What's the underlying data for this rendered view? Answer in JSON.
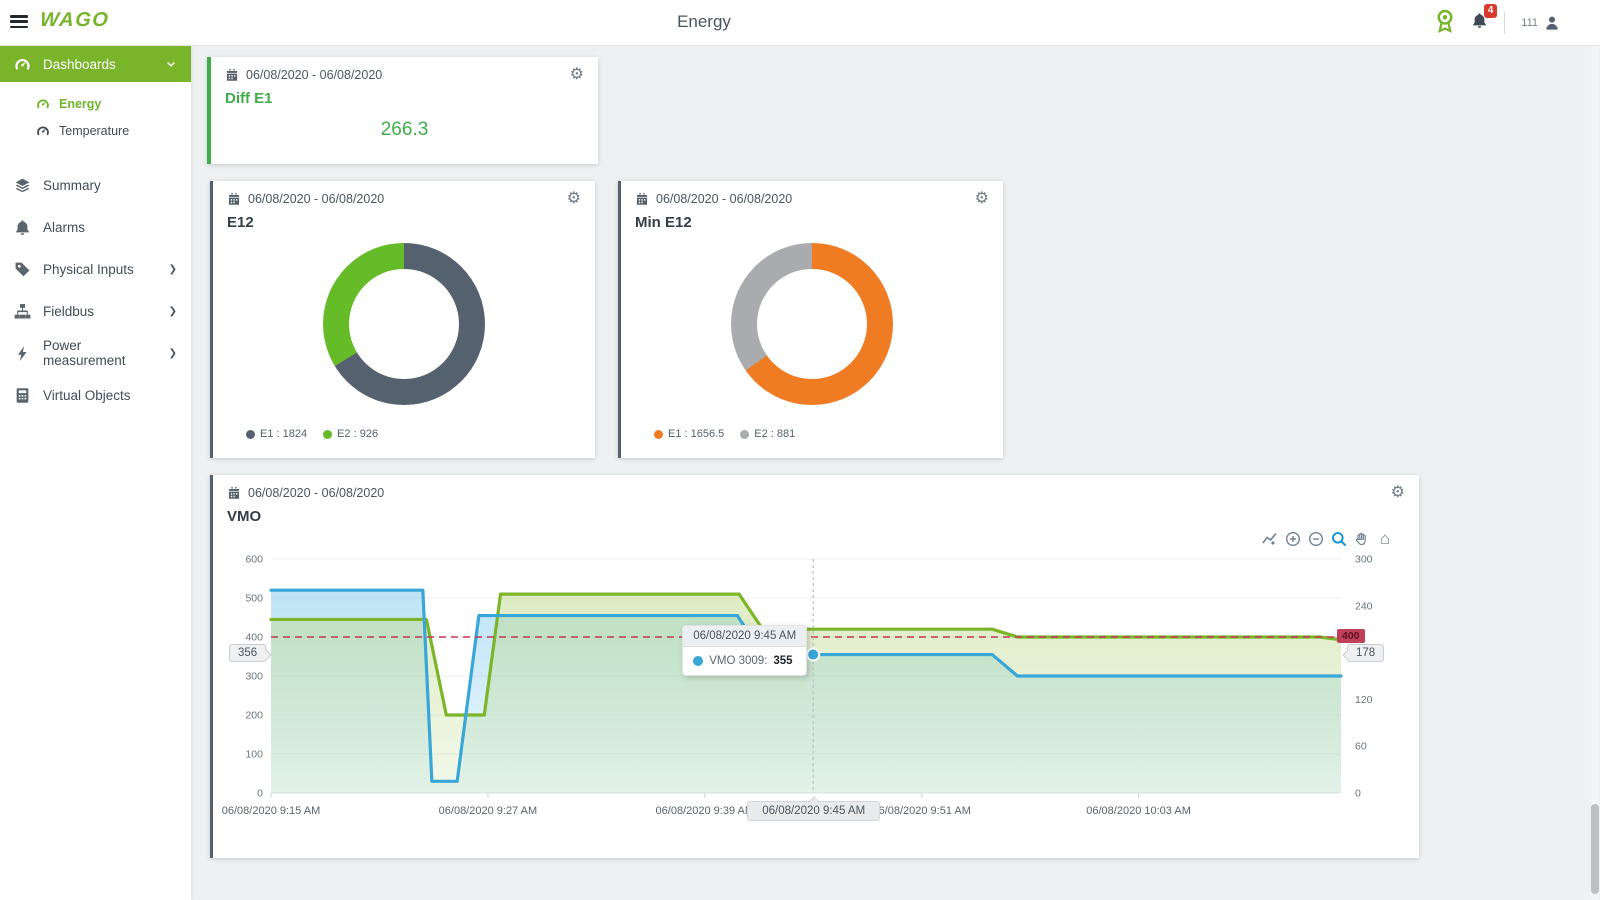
{
  "topbar": {
    "logo": "WAGO",
    "title": "Energy",
    "notification_count": "4",
    "user_id": "111"
  },
  "sidebar": {
    "items": [
      {
        "label": "Dashboards",
        "icon": "gauge",
        "active": true,
        "has_submenu": true
      },
      {
        "label": "Energy",
        "icon": "gauge",
        "sub": true,
        "selected": true
      },
      {
        "label": "Temperature",
        "icon": "gauge",
        "sub": true
      },
      {
        "label": "Summary",
        "icon": "layers"
      },
      {
        "label": "Alarms",
        "icon": "bell"
      },
      {
        "label": "Physical Inputs",
        "icon": "tag",
        "has_submenu": true
      },
      {
        "label": "Fieldbus",
        "icon": "sitemap",
        "has_submenu": true
      },
      {
        "label": "Power measurement",
        "icon": "bolt",
        "has_submenu": true
      },
      {
        "label": "Virtual Objects",
        "icon": "calculator"
      }
    ]
  },
  "cards": {
    "diff": {
      "date_range": "06/08/2020 - 06/08/2020",
      "title": "Diff E1",
      "value": "266.3"
    },
    "e12": {
      "date_range": "06/08/2020 - 06/08/2020",
      "title": "E12"
    },
    "min_e12": {
      "date_range": "06/08/2020 - 06/08/2020",
      "title": "Min E12"
    },
    "vmo": {
      "date_range": "06/08/2020 - 06/08/2020",
      "title": "VMO"
    }
  },
  "chart_data": [
    {
      "type": "pie",
      "subtype": "donut",
      "title": "E12",
      "series": [
        {
          "name": "E1",
          "value": 1824,
          "color": "#55616e"
        },
        {
          "name": "E2",
          "value": 926,
          "color": "#66bb29"
        }
      ],
      "legend_position": "bottom-left",
      "start_angle_deg": 0,
      "direction": "clockwise"
    },
    {
      "type": "pie",
      "subtype": "donut",
      "title": "Min E12",
      "series": [
        {
          "name": "E1",
          "value": 1656.5,
          "color": "#ef7c22"
        },
        {
          "name": "E2",
          "value": 881,
          "color": "#a9abae"
        }
      ],
      "legend_position": "bottom-left",
      "start_angle_deg": 0,
      "direction": "clockwise"
    },
    {
      "type": "line",
      "title": "VMO",
      "grid": true,
      "legend_position": "none",
      "x_unit": "minutes after 06/08/2020 9:15 AM",
      "t_max": 59.2,
      "x_ticks": [
        {
          "t": 0,
          "label": "06/08/2020 9:15 AM"
        },
        {
          "t": 12,
          "label": "06/08/2020 9:27 AM"
        },
        {
          "t": 24,
          "label": "06/08/2020 9:39 AM"
        },
        {
          "t": 36,
          "label": "06/08/2020 9:51 AM"
        },
        {
          "t": 48,
          "label": "06/08/2020 10:03 AM"
        }
      ],
      "y_left": {
        "min": 0,
        "max": 600,
        "ticks": [
          600,
          500,
          400,
          300,
          200,
          100,
          0
        ]
      },
      "y_right": {
        "min": 0,
        "max": 300,
        "ticks": [
          300,
          240,
          180,
          120,
          60,
          0
        ]
      },
      "series": [
        {
          "name": "VMO 3009",
          "color": "#39a6d8",
          "fill_from": "rgba(126,201,237,0.5)",
          "fill_to": "rgba(126,201,237,0.14)",
          "points": [
            [
              0,
              520
            ],
            [
              8.4,
              520
            ],
            [
              8.9,
              30
            ],
            [
              10.3,
              30
            ],
            [
              11.5,
              455
            ],
            [
              25.8,
              455
            ],
            [
              27.2,
              355
            ],
            [
              39.9,
              355
            ],
            [
              41.3,
              300
            ],
            [
              59.2,
              300
            ]
          ]
        },
        {
          "name": "",
          "color": "#7db52a",
          "fill_from": "rgba(188,217,139,0.5)",
          "fill_to": "rgba(188,217,139,0.18)",
          "points": [
            [
              0,
              445
            ],
            [
              8.6,
              445
            ],
            [
              9.7,
              200
            ],
            [
              11.8,
              200
            ],
            [
              12.7,
              510
            ],
            [
              25.9,
              510
            ],
            [
              27.2,
              420
            ],
            [
              39.9,
              420
            ],
            [
              41.3,
              400
            ],
            [
              58,
              400
            ],
            [
              59.2,
              393
            ]
          ]
        }
      ],
      "annotation": {
        "axis": "y_left",
        "value": 400,
        "label": "400",
        "color": "#bf3a52"
      },
      "crosshair": {
        "t": 30,
        "value": 355,
        "left_label": "356",
        "right_label": "178",
        "x_label": "06/08/2020 9:45 AM"
      },
      "tooltip": {
        "header": "06/08/2020 9:45 AM",
        "series_label": "VMO 3009:",
        "value": "355"
      }
    }
  ]
}
